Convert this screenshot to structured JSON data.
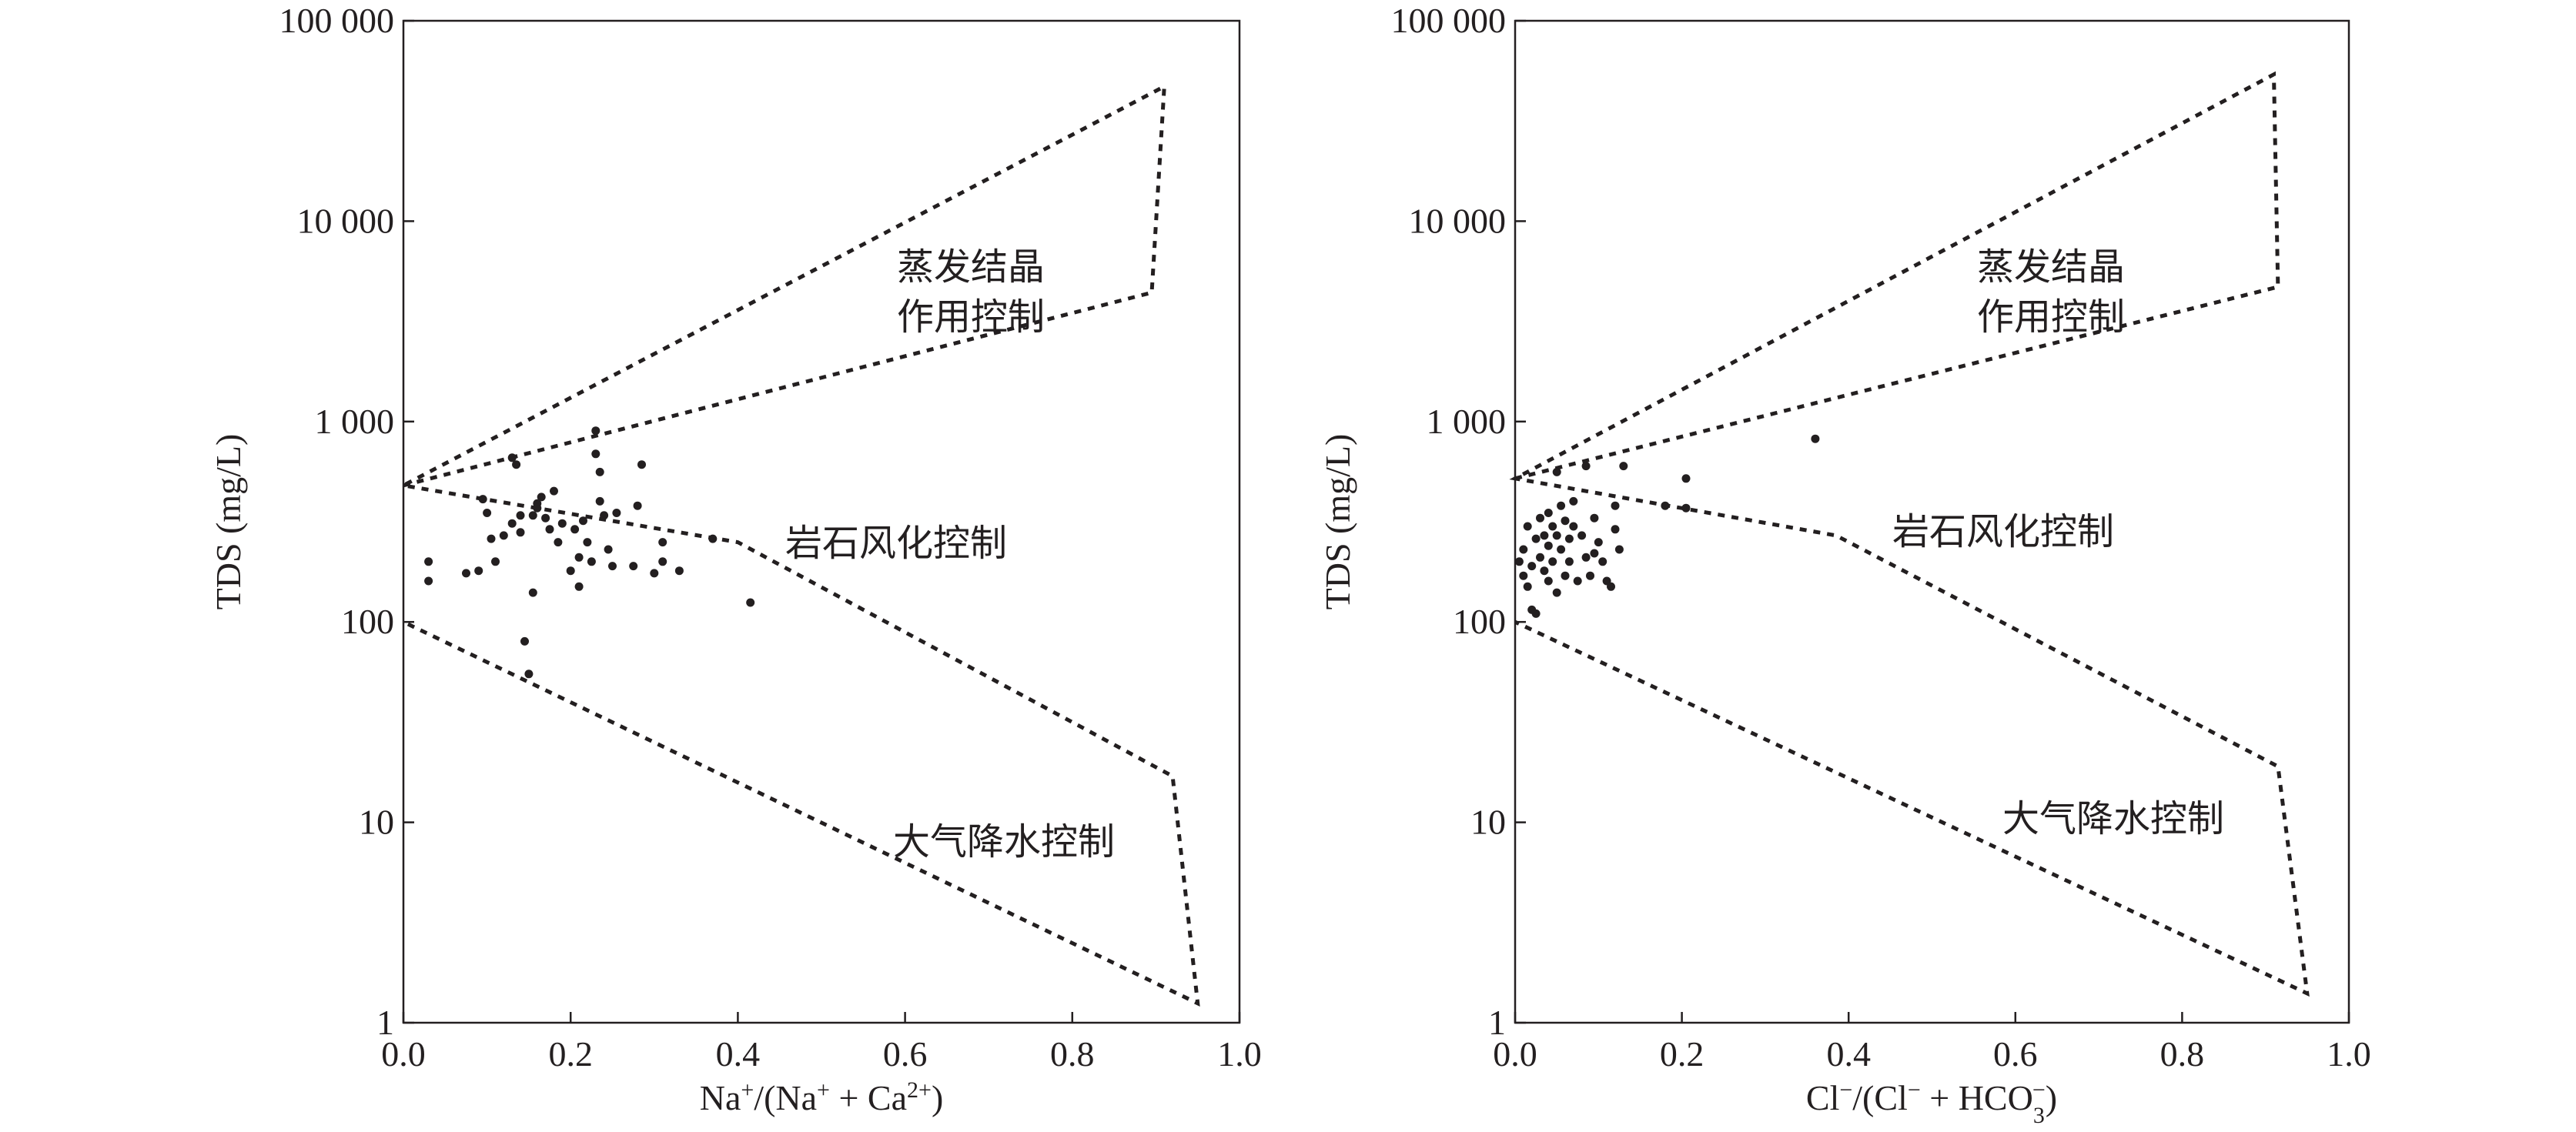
{
  "chart_data": [
    {
      "type": "scatter",
      "xlabel": "Na+/(Na+ + Ca2+)",
      "xlabel_parts": {
        "a": "Na",
        "a_sup": "+",
        "b": "/(Na",
        "b_sup": "+",
        "c": " + Ca",
        "c_sup": "2+",
        "d": ")"
      },
      "ylabel": "TDS (mg/L)",
      "xlim": [
        0,
        1.0
      ],
      "ylim": [
        1,
        100000
      ],
      "yscale": "log",
      "x_ticks": [
        "0.0",
        "0.2",
        "0.4",
        "0.6",
        "0.8",
        "1.0"
      ],
      "y_ticks": [
        "1",
        "10",
        "100",
        "1 000",
        "10 000",
        "100 000"
      ],
      "grid": false,
      "regions": [
        {
          "lines": [
            "蒸发结晶",
            "作用控制"
          ]
        },
        {
          "lines": [
            "岩石风化控制"
          ]
        },
        {
          "lines": [
            "大气降水控制"
          ]
        }
      ],
      "envelope": [
        [
          0.0,
          480
        ],
        [
          0.895,
          4400
        ],
        [
          0.91,
          47000
        ],
        [
          0.0,
          480
        ],
        [
          0.4,
          250
        ],
        [
          0.92,
          17
        ],
        [
          0.95,
          1.25
        ],
        [
          0.0,
          100
        ]
      ],
      "points": [
        [
          0.03,
          200
        ],
        [
          0.03,
          160
        ],
        [
          0.075,
          175
        ],
        [
          0.09,
          180
        ],
        [
          0.095,
          410
        ],
        [
          0.1,
          350
        ],
        [
          0.105,
          260
        ],
        [
          0.11,
          200
        ],
        [
          0.12,
          270
        ],
        [
          0.13,
          310
        ],
        [
          0.13,
          660
        ],
        [
          0.135,
          610
        ],
        [
          0.14,
          340
        ],
        [
          0.14,
          280
        ],
        [
          0.145,
          80
        ],
        [
          0.15,
          55
        ],
        [
          0.155,
          340
        ],
        [
          0.155,
          140
        ],
        [
          0.16,
          390
        ],
        [
          0.16,
          370
        ],
        [
          0.165,
          420
        ],
        [
          0.17,
          330
        ],
        [
          0.175,
          290
        ],
        [
          0.18,
          450
        ],
        [
          0.185,
          250
        ],
        [
          0.19,
          310
        ],
        [
          0.2,
          180
        ],
        [
          0.205,
          290
        ],
        [
          0.21,
          210
        ],
        [
          0.21,
          150
        ],
        [
          0.215,
          320
        ],
        [
          0.22,
          250
        ],
        [
          0.225,
          200
        ],
        [
          0.23,
          900
        ],
        [
          0.23,
          690
        ],
        [
          0.235,
          560
        ],
        [
          0.235,
          400
        ],
        [
          0.24,
          340
        ],
        [
          0.245,
          230
        ],
        [
          0.25,
          190
        ],
        [
          0.255,
          350
        ],
        [
          0.275,
          190
        ],
        [
          0.28,
          380
        ],
        [
          0.285,
          610
        ],
        [
          0.3,
          175
        ],
        [
          0.31,
          200
        ],
        [
          0.31,
          250
        ],
        [
          0.33,
          180
        ],
        [
          0.37,
          260
        ],
        [
          0.415,
          125
        ]
      ]
    },
    {
      "type": "scatter",
      "xlabel": "Cl−/(Cl− + HCO3−)",
      "xlabel_parts": {
        "a": "Cl",
        "a_sup": "−",
        "b": "/(Cl",
        "b_sup": "−",
        "c": " + HCO",
        "c_sub": "3",
        "c_sup": "−",
        "d": ")"
      },
      "ylabel": "TDS (mg/L)",
      "xlim": [
        0,
        1.0
      ],
      "ylim": [
        1,
        100000
      ],
      "yscale": "log",
      "x_ticks": [
        "0.0",
        "0.2",
        "0.4",
        "0.6",
        "0.8",
        "1.0"
      ],
      "y_ticks": [
        "1",
        "10",
        "100",
        "1 000",
        "10 000",
        "100 000"
      ],
      "grid": false,
      "regions": [
        {
          "lines": [
            "蒸发结晶",
            "作用控制"
          ]
        },
        {
          "lines": [
            "岩石风化控制"
          ]
        },
        {
          "lines": [
            "大气降水控制"
          ]
        }
      ],
      "envelope": [
        [
          0.0,
          520
        ],
        [
          0.915,
          4700
        ],
        [
          0.91,
          54000
        ],
        [
          0.0,
          520
        ],
        [
          0.385,
          270
        ],
        [
          0.915,
          19
        ],
        [
          0.95,
          1.4
        ],
        [
          0.0,
          100
        ]
      ],
      "points": [
        [
          0.005,
          200
        ],
        [
          0.01,
          230
        ],
        [
          0.01,
          170
        ],
        [
          0.015,
          300
        ],
        [
          0.015,
          150
        ],
        [
          0.02,
          190
        ],
        [
          0.02,
          115
        ],
        [
          0.025,
          260
        ],
        [
          0.025,
          110
        ],
        [
          0.03,
          330
        ],
        [
          0.03,
          210
        ],
        [
          0.035,
          270
        ],
        [
          0.035,
          180
        ],
        [
          0.04,
          350
        ],
        [
          0.04,
          240
        ],
        [
          0.04,
          160
        ],
        [
          0.045,
          300
        ],
        [
          0.045,
          200
        ],
        [
          0.05,
          560
        ],
        [
          0.05,
          270
        ],
        [
          0.05,
          140
        ],
        [
          0.055,
          380
        ],
        [
          0.055,
          230
        ],
        [
          0.06,
          320
        ],
        [
          0.06,
          170
        ],
        [
          0.065,
          260
        ],
        [
          0.065,
          200
        ],
        [
          0.07,
          400
        ],
        [
          0.07,
          300
        ],
        [
          0.075,
          160
        ],
        [
          0.08,
          270
        ],
        [
          0.085,
          600
        ],
        [
          0.085,
          210
        ],
        [
          0.09,
          170
        ],
        [
          0.095,
          330
        ],
        [
          0.095,
          220
        ],
        [
          0.1,
          250
        ],
        [
          0.105,
          200
        ],
        [
          0.11,
          160
        ],
        [
          0.115,
          150
        ],
        [
          0.12,
          380
        ],
        [
          0.12,
          290
        ],
        [
          0.125,
          230
        ],
        [
          0.13,
          600
        ],
        [
          0.18,
          380
        ],
        [
          0.205,
          520
        ],
        [
          0.205,
          370
        ],
        [
          0.36,
          820
        ]
      ]
    }
  ]
}
